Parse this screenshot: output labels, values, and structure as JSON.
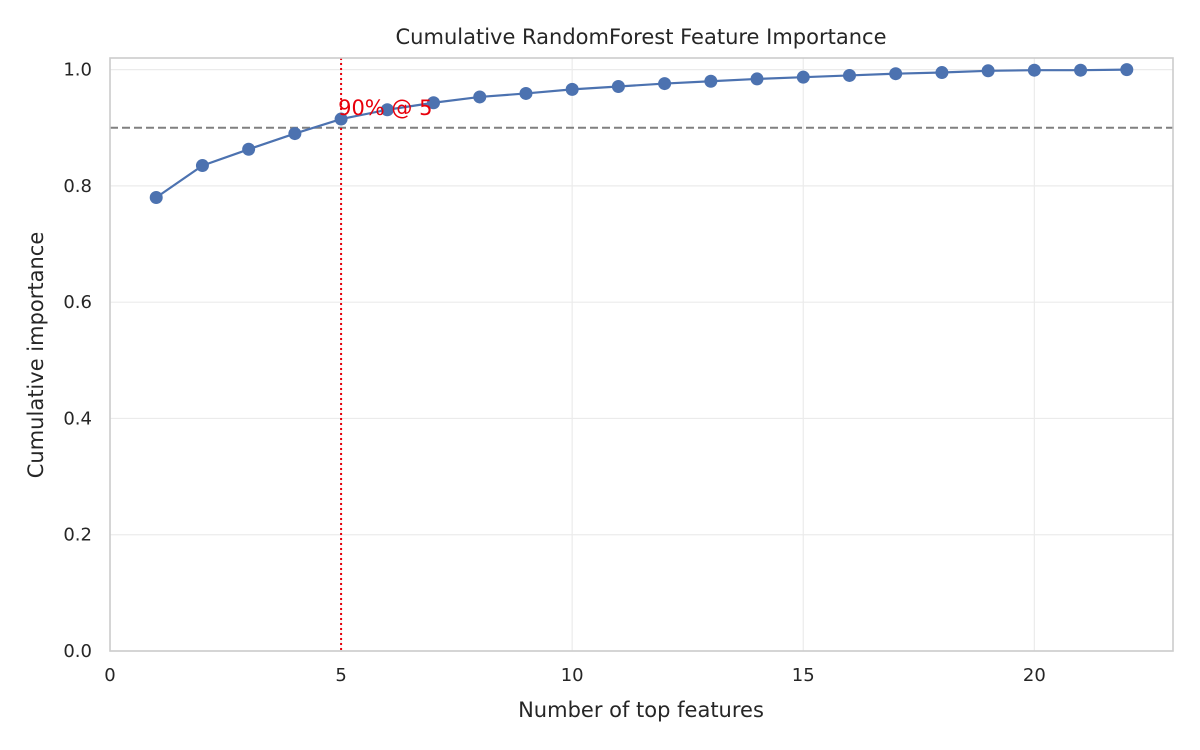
{
  "chart_data": {
    "type": "line",
    "title": "Cumulative RandomForest Feature Importance",
    "xlabel": "Number of top features",
    "ylabel": "Cumulative importance",
    "xlim": [
      0,
      23
    ],
    "ylim": [
      0,
      1.02
    ],
    "xticks": [
      0,
      5,
      10,
      15,
      20
    ],
    "yticks": [
      0.0,
      0.2,
      0.4,
      0.6,
      0.8,
      1.0
    ],
    "xtick_labels": [
      "0",
      "5",
      "10",
      "15",
      "20"
    ],
    "ytick_labels": [
      "0.0",
      "0.2",
      "0.4",
      "0.6",
      "0.8",
      "1.0"
    ],
    "grid": true,
    "series": [
      {
        "x": [
          1,
          2,
          3,
          4,
          5,
          6,
          7,
          8,
          9,
          10,
          11,
          12,
          13,
          14,
          15,
          16,
          17,
          18,
          19,
          20,
          21,
          22
        ],
        "values": [
          0.78,
          0.835,
          0.863,
          0.89,
          0.915,
          0.931,
          0.943,
          0.953,
          0.959,
          0.966,
          0.971,
          0.976,
          0.98,
          0.984,
          0.987,
          0.99,
          0.993,
          0.995,
          0.998,
          0.999,
          0.999,
          1.0
        ],
        "color": "#4c72b0"
      }
    ],
    "threshold_line": {
      "y": 0.9,
      "color": "#808080",
      "style": "dashed"
    },
    "vertical_line": {
      "x": 5,
      "color": "#e8000b",
      "style": "dotted"
    },
    "annotation": {
      "text": "90% @ 5",
      "x": 5,
      "y": 0.915,
      "color": "#e8000b"
    }
  }
}
